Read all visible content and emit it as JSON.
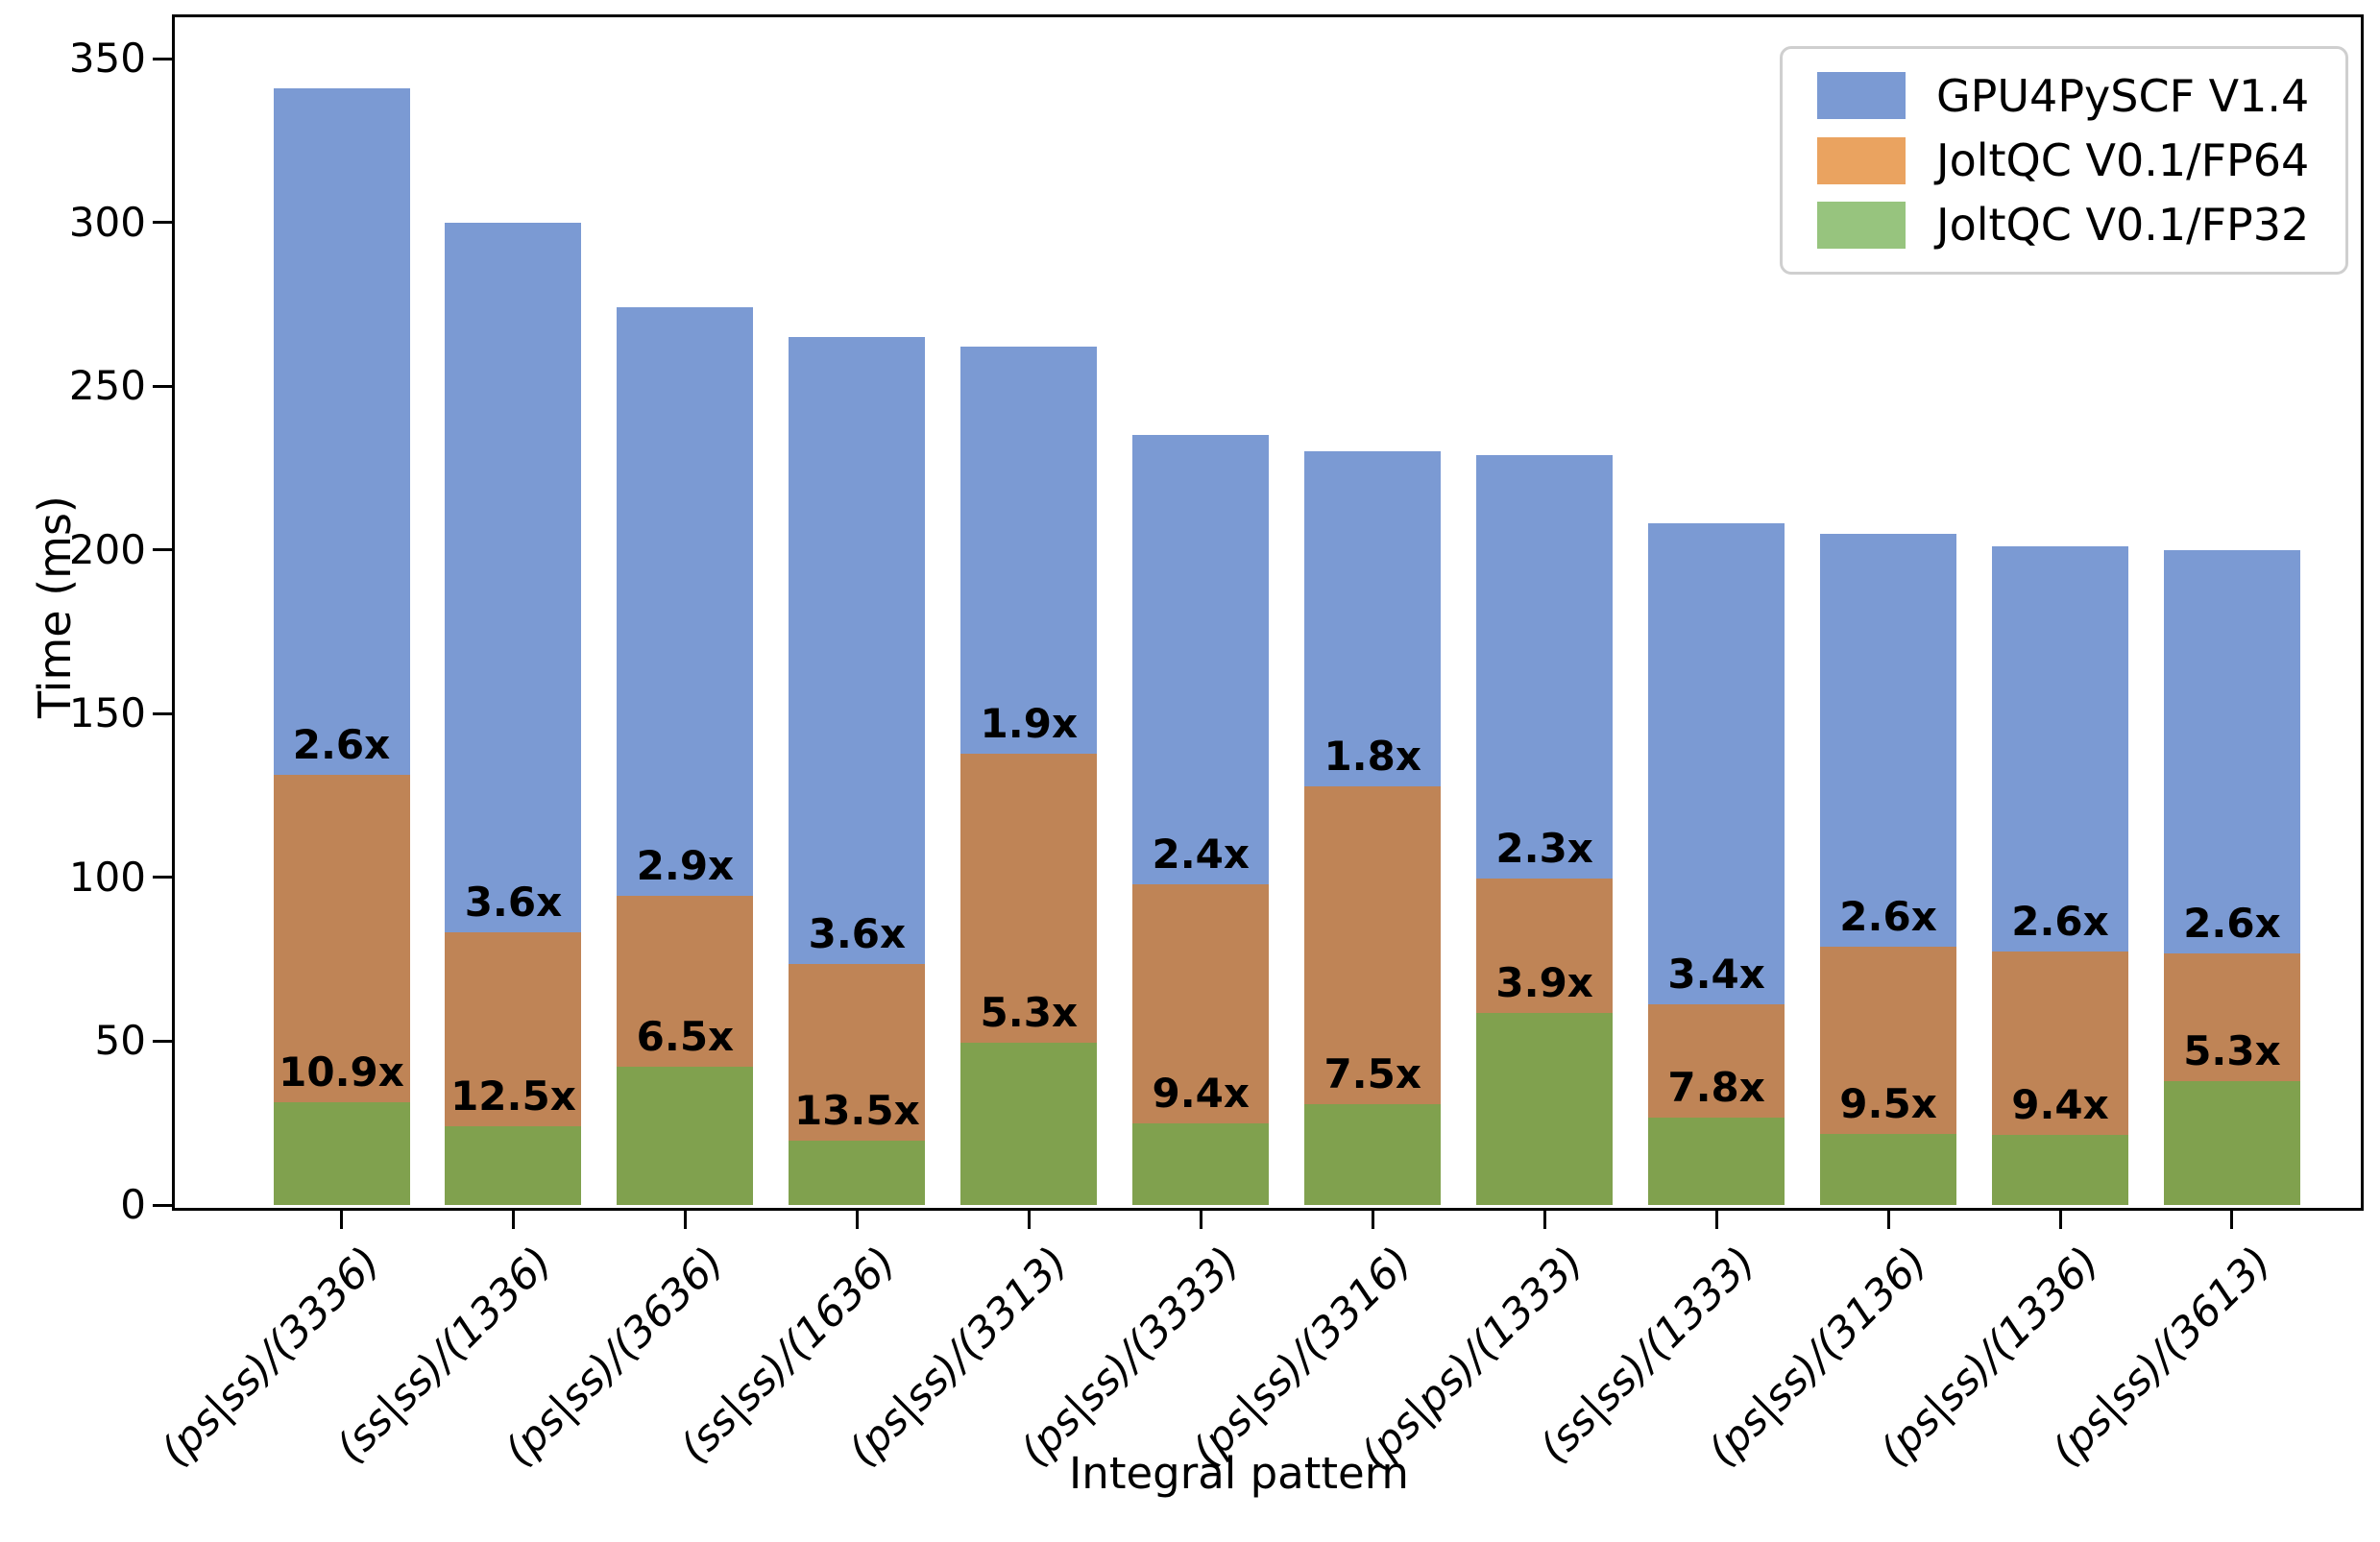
{
  "chart_data": {
    "type": "bar",
    "subtype": "overlaid-bars-with-speedup-annotations",
    "title": "",
    "xlabel": "Integral pattern",
    "ylabel": "Time (ms)",
    "ylim": [
      0,
      363.5
    ],
    "yticks": [
      0,
      50,
      100,
      150,
      200,
      250,
      300,
      350
    ],
    "grid": false,
    "legend_position": "upper right",
    "categories": [
      "(ps|ss)/(3336)",
      "(ss|ss)/(1336)",
      "(ps|ss)/(3636)",
      "(ss|ss)/(1636)",
      "(ps|ss)/(3313)",
      "(ps|ss)/(3333)",
      "(ps|ss)/(3316)",
      "(ps|ps)/(1333)",
      "(ss|ss)/(1333)",
      "(ps|ss)/(3136)",
      "(ps|ss)/(1336)",
      "(ps|ss)/(3613)"
    ],
    "series": [
      {
        "name": "GPU4PySCF V1.4",
        "bar_color": "#7b9ad3",
        "legend_color": "#7b9ad3",
        "values": [
          341,
          300,
          274,
          265,
          262,
          235,
          230,
          229,
          208,
          205,
          201,
          200
        ]
      },
      {
        "name": "JoltQC V0.1/FP64",
        "bar_color": "#bf8456",
        "legend_color": "#eaa360",
        "values": [
          131.2,
          83.3,
          94.5,
          73.6,
          137.9,
          97.9,
          127.8,
          99.6,
          61.2,
          78.8,
          77.3,
          76.9
        ]
      },
      {
        "name": "JoltQC V0.1/FP32",
        "bar_color": "#80a14e",
        "legend_color": "#97c47e",
        "values": [
          31.3,
          24.0,
          42.2,
          19.6,
          49.4,
          25.0,
          30.7,
          58.7,
          26.7,
          21.6,
          21.4,
          37.7
        ]
      }
    ],
    "annotations_fp64": [
      "2.6x",
      "3.6x",
      "2.9x",
      "3.6x",
      "1.9x",
      "2.4x",
      "1.8x",
      "2.3x",
      "3.4x",
      "2.6x",
      "2.6x",
      "2.6x"
    ],
    "annotations_fp32": [
      "10.9x",
      "12.5x",
      "6.5x",
      "13.5x",
      "5.3x",
      "9.4x",
      "7.5x",
      "3.9x",
      "7.8x",
      "9.5x",
      "9.4x",
      "5.3x"
    ]
  }
}
